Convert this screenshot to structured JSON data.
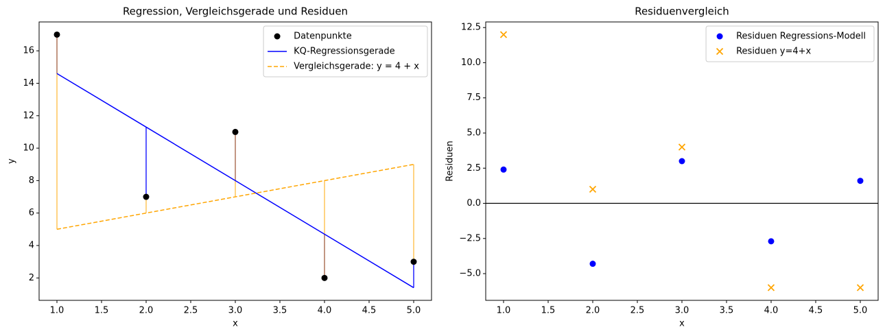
{
  "chart_data": [
    {
      "type": "line",
      "title": "Regression, Vergleichsgerade und Residuen",
      "x_label": "x",
      "y_label": "y",
      "x": [
        1,
        2,
        3,
        4,
        5
      ],
      "series": [
        {
          "name": "Datenpunkte",
          "kind": "scatter",
          "marker": "o",
          "color": "#000000",
          "values": [
            17,
            7,
            11,
            2,
            3
          ]
        },
        {
          "name": "KQ-Regressionsgerade",
          "kind": "line",
          "linestyle": "solid",
          "color": "#0000ff",
          "values": [
            14.6,
            11.3,
            8,
            4.7,
            1.4
          ]
        },
        {
          "name": "Vergleichsgerade: y = 4 + x",
          "kind": "line",
          "linestyle": "dashed",
          "color": "#ffa500",
          "values": [
            5,
            6,
            7,
            8,
            9
          ]
        }
      ],
      "residual_lines": true,
      "xlim": [
        0.8,
        5.2
      ],
      "xticks": [
        {
          "value": 1,
          "label": "1.0"
        },
        1.5,
        {
          "value": 2,
          "label": "2.0"
        },
        2.5,
        {
          "value": 3,
          "label": "3.0"
        },
        3.5,
        {
          "value": 4,
          "label": "4.0"
        },
        4.5,
        {
          "value": 5,
          "label": "5.0"
        }
      ],
      "ylim": [
        0.62,
        17.78
      ],
      "yticks": [
        2,
        4,
        6,
        8,
        10,
        12,
        14,
        16
      ],
      "legend": "upper right"
    },
    {
      "type": "scatter",
      "title": "Residuenvergleich",
      "x_label": "x",
      "y_label": "Residuen",
      "x": [
        1,
        2,
        3,
        4,
        5
      ],
      "series": [
        {
          "name": "Residuen Regressions-Modell",
          "kind": "scatter",
          "marker": "o",
          "color": "#0000ff",
          "values": [
            2.4,
            -4.3,
            3,
            -2.7,
            1.6
          ]
        },
        {
          "name": "Residuen y=4+x",
          "kind": "scatter",
          "marker": "x",
          "color": "#ffa500",
          "values": [
            12,
            1,
            4,
            -6,
            -6
          ]
        }
      ],
      "hline": 0,
      "xlim": [
        0.8,
        5.2
      ],
      "xticks": [
        {
          "value": 1,
          "label": "1.0"
        },
        1.5,
        {
          "value": 2,
          "label": "2.0"
        },
        2.5,
        {
          "value": 3,
          "label": "3.0"
        },
        3.5,
        {
          "value": 4,
          "label": "4.0"
        },
        4.5,
        {
          "value": 5,
          "label": "5.0"
        }
      ],
      "ylim": [
        -6.9,
        12.9
      ],
      "yticks": [
        {
          "value": -5,
          "label": "−5.0"
        },
        {
          "value": -2.5,
          "label": "−2.5"
        },
        {
          "value": 0,
          "label": "0.0"
        },
        2.5,
        {
          "value": 5,
          "label": "5.0"
        },
        7.5,
        {
          "value": 10,
          "label": "10.0"
        },
        12.5
      ],
      "legend": "upper right"
    }
  ]
}
